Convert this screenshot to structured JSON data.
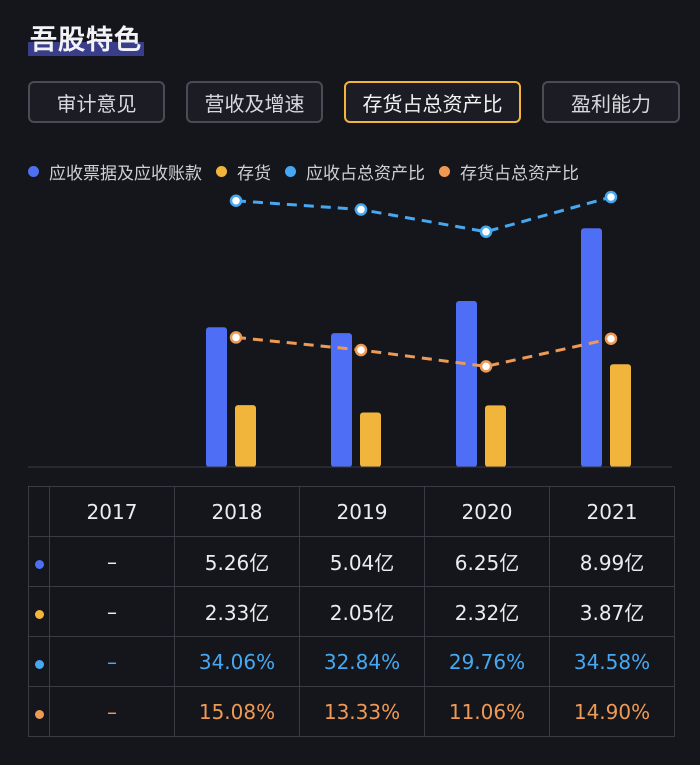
{
  "page_title": "吾股特色",
  "tabs": [
    {
      "label": "审计意见",
      "active": false
    },
    {
      "label": "营收及增速",
      "active": false
    },
    {
      "label": "存货占总资产比",
      "active": true
    },
    {
      "label": "盈利能力",
      "active": false
    }
  ],
  "colors": {
    "receivables_bar": "#4d6ef5",
    "inventory_bar": "#f2b53c",
    "receivables_ratio_line": "#46a8f0",
    "inventory_ratio_line": "#ee9a55",
    "active_tab_border": "#f2b53c"
  },
  "chart_data": {
    "type": "bar",
    "categories": [
      "2017",
      "2018",
      "2019",
      "2020",
      "2021"
    ],
    "series": [
      {
        "name": "应收票据及应收账款",
        "kind": "bar",
        "unit": "亿",
        "values": [
          null,
          5.26,
          5.04,
          6.25,
          8.99
        ]
      },
      {
        "name": "存货",
        "kind": "bar",
        "unit": "亿",
        "values": [
          null,
          2.33,
          2.05,
          2.32,
          3.87
        ]
      },
      {
        "name": "应收占总资产比",
        "kind": "line",
        "style": "dashed",
        "unit": "%",
        "values": [
          null,
          34.06,
          32.84,
          29.76,
          34.58
        ]
      },
      {
        "name": "存货占总资产比",
        "kind": "line",
        "style": "dashed",
        "unit": "%",
        "values": [
          null,
          15.08,
          13.33,
          11.06,
          14.9
        ]
      }
    ],
    "title": "",
    "xlabel": "",
    "ylabel": "",
    "legend_position": "top-left"
  },
  "table": {
    "header": [
      "2017",
      "2018",
      "2019",
      "2020",
      "2021"
    ],
    "rows": [
      {
        "series": "应收票据及应收账款",
        "cells": [
          "–",
          "5.26亿",
          "5.04亿",
          "6.25亿",
          "8.99亿"
        ]
      },
      {
        "series": "存货",
        "cells": [
          "–",
          "2.33亿",
          "2.05亿",
          "2.32亿",
          "3.87亿"
        ]
      },
      {
        "series": "应收占总资产比",
        "cells": [
          "–",
          "34.06%",
          "32.84%",
          "29.76%",
          "34.58%"
        ]
      },
      {
        "series": "存货占总资产比",
        "cells": [
          "–",
          "15.08%",
          "13.33%",
          "11.06%",
          "14.90%"
        ]
      }
    ]
  }
}
